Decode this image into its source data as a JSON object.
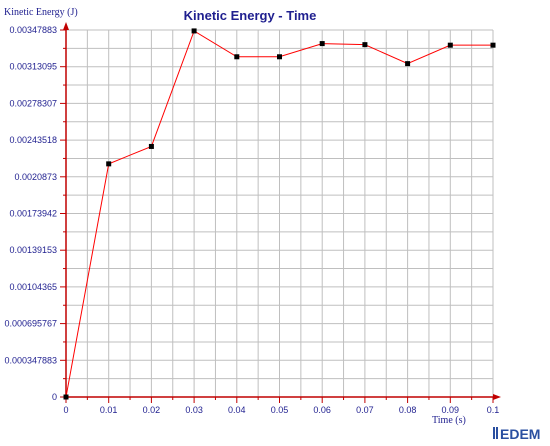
{
  "chart_data": {
    "type": "line",
    "title": "Kinetic Energy - Time",
    "xlabel": "Time (s)",
    "ylabel": "Kinetic Energy (J)",
    "xlim": [
      0,
      0.1
    ],
    "ylim": [
      0,
      0.00347883
    ],
    "x_ticks": [
      "0",
      "0.01",
      "0.02",
      "0.03",
      "0.04",
      "0.05",
      "0.06",
      "0.07",
      "0.08",
      "0.09",
      "0.1"
    ],
    "y_ticks": [
      "0",
      "0.000347883",
      "0.000695767",
      "0.00104365",
      "0.00139153",
      "0.00173942",
      "0.0020873",
      "0.00243518",
      "0.00278307",
      "0.00313095",
      "0.00347883"
    ],
    "grid": true,
    "series": [
      {
        "color": "#ff0000",
        "marker_color": "#000000",
        "x": [
          0,
          0.01,
          0.02,
          0.03,
          0.04,
          0.05,
          0.06,
          0.07,
          0.08,
          0.09,
          0.1
        ],
        "y": [
          0,
          0.00221,
          0.002375,
          0.00347,
          0.003225,
          0.003225,
          0.00335,
          0.00334,
          0.00316,
          0.003335,
          0.003335
        ]
      }
    ]
  },
  "logo": {
    "text": "EDEM"
  },
  "colors": {
    "grid": "#bfbfbf",
    "axis": "#c00000",
    "text": "#1f1f8f"
  }
}
